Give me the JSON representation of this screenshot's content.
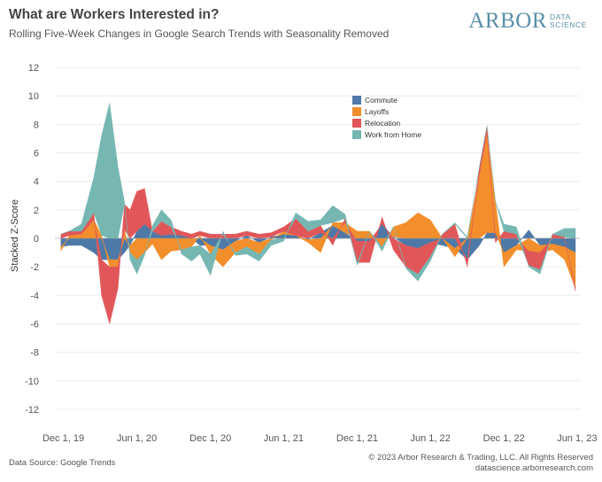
{
  "header": {
    "title": "What are Workers Interested in?",
    "subtitle": "Rolling Five-Week Changes in Google Search Trends with Seasonality Removed"
  },
  "logo": {
    "main": "ARBOR",
    "sub1": "DATA",
    "sub2": "SCIENCE"
  },
  "footer": {
    "source": "Data Source: Google Trends",
    "copyright": "© 2023 Arbor Research & Trading, LLC. All Rights Reserved",
    "url": "datascience.arborresearch.com"
  },
  "chart_data": {
    "type": "area",
    "stacked": true,
    "ylabel": "Stacked Z-Score",
    "ylim": [
      -13,
      13
    ],
    "yticks": [
      12,
      10,
      8,
      6,
      4,
      2,
      0,
      -2,
      -4,
      -6,
      -8,
      -10,
      -12
    ],
    "xlim": [
      "2019-11-10",
      "2023-06-08"
    ],
    "xticks": [
      {
        "date": "2019-12-01",
        "label": "Dec 1, 19"
      },
      {
        "date": "2020-06-01",
        "label": "Jun 1, 20"
      },
      {
        "date": "2020-12-01",
        "label": "Dec 1, 20"
      },
      {
        "date": "2021-06-01",
        "label": "Jun 1, 21"
      },
      {
        "date": "2021-12-01",
        "label": "Dec 1, 21"
      },
      {
        "date": "2022-06-01",
        "label": "Jun 1, 22"
      },
      {
        "date": "2022-12-01",
        "label": "Dec 1, 22"
      },
      {
        "date": "2023-06-01",
        "label": "Jun 1, 23"
      }
    ],
    "grid": true,
    "legend_position": "top-right",
    "dates": [
      "2019-11-25",
      "2019-12-15",
      "2020-01-15",
      "2020-02-15",
      "2020-03-05",
      "2020-03-25",
      "2020-04-15",
      "2020-05-01",
      "2020-05-15",
      "2020-06-01",
      "2020-06-20",
      "2020-07-10",
      "2020-08-01",
      "2020-08-25",
      "2020-09-20",
      "2020-10-15",
      "2020-11-05",
      "2020-12-01",
      "2021-01-01",
      "2021-02-01",
      "2021-03-01",
      "2021-04-01",
      "2021-05-01",
      "2021-06-01",
      "2021-07-01",
      "2021-08-01",
      "2021-09-01",
      "2021-10-01",
      "2021-11-01",
      "2021-12-01",
      "2022-01-01",
      "2022-02-01",
      "2022-03-01",
      "2022-04-01",
      "2022-05-01",
      "2022-06-01",
      "2022-07-01",
      "2022-08-01",
      "2022-09-01",
      "2022-10-01",
      "2022-10-20",
      "2022-11-10",
      "2022-12-01",
      "2023-01-01",
      "2023-02-01",
      "2023-03-01",
      "2023-04-01",
      "2023-05-01",
      "2023-05-28"
    ],
    "series": [
      {
        "name": "Commute",
        "color": "#4e79a7",
        "values": [
          -0.6,
          -0.5,
          -0.5,
          -1.0,
          -1.5,
          -1.5,
          -1.5,
          -1.0,
          -0.5,
          0.5,
          1.0,
          0.5,
          0.2,
          0.3,
          0.2,
          0.0,
          -0.5,
          -0.5,
          -0.8,
          -0.2,
          0.2,
          -0.3,
          0.1,
          0.3,
          0.2,
          -0.1,
          0.4,
          0.9,
          0.4,
          -0.2,
          -0.2,
          1.0,
          0.1,
          -0.5,
          -0.7,
          -0.3,
          -0.5,
          -0.7,
          -1.5,
          -0.5,
          0.4,
          0.4,
          -1.0,
          -0.5,
          0.6,
          -0.5,
          -0.4,
          -0.6,
          -1.0
        ]
      },
      {
        "name": "Layoffs",
        "color": "#f28e2b",
        "values": [
          -0.3,
          0.2,
          0.3,
          1.3,
          0.2,
          -0.5,
          -0.5,
          0.6,
          -0.5,
          -1.5,
          -1.0,
          -0.4,
          -1.5,
          -0.9,
          -0.8,
          -0.6,
          0.2,
          -0.6,
          -1.2,
          -0.8,
          -0.6,
          -0.8,
          -0.1,
          0.2,
          0.0,
          -0.2,
          -1.0,
          0.2,
          0.7,
          0.5,
          0.5,
          -0.6,
          0.7,
          1.1,
          1.8,
          1.3,
          0.0,
          -0.6,
          0.0,
          4.5,
          7.0,
          2.2,
          -1.0,
          -0.3,
          -0.9,
          -0.5,
          -0.4,
          -0.9,
          -2.5
        ]
      },
      {
        "name": "Relocation",
        "color": "#e15759",
        "values": [
          0.3,
          0.3,
          0.2,
          0.5,
          -2.5,
          -4.0,
          -1.5,
          1.8,
          2.0,
          2.8,
          2.5,
          0.0,
          1.0,
          0.5,
          0.3,
          0.3,
          0.3,
          0.3,
          0.3,
          0.3,
          0.3,
          0.3,
          0.3,
          0.3,
          1.2,
          0.5,
          0.5,
          -0.5,
          0.3,
          -1.5,
          -1.5,
          0.5,
          -0.8,
          -1.5,
          -1.8,
          -1.0,
          0.3,
          1.0,
          -0.5,
          0.5,
          0.5,
          -0.3,
          0.5,
          0.3,
          -1.0,
          -1.2,
          0.3,
          0.1,
          -0.2
        ]
      },
      {
        "name": "Work from Home",
        "color": "#76b7b2",
        "values": [
          0.0,
          0.0,
          0.5,
          2.5,
          7.0,
          9.5,
          5.0,
          0.2,
          -0.5,
          -1.0,
          -0.2,
          0.4,
          0.8,
          0.5,
          -0.3,
          -1.0,
          -0.6,
          -1.5,
          0.2,
          -0.2,
          -0.5,
          -0.5,
          -0.4,
          -0.2,
          0.4,
          0.7,
          0.4,
          1.2,
          0.3,
          -0.2,
          0.0,
          -0.3,
          0.0,
          -0.1,
          -0.5,
          -0.3,
          0.0,
          0.1,
          0.1,
          0.0,
          0.0,
          0.0,
          0.5,
          0.5,
          -0.1,
          -0.3,
          0.0,
          0.6,
          0.7
        ]
      }
    ]
  }
}
